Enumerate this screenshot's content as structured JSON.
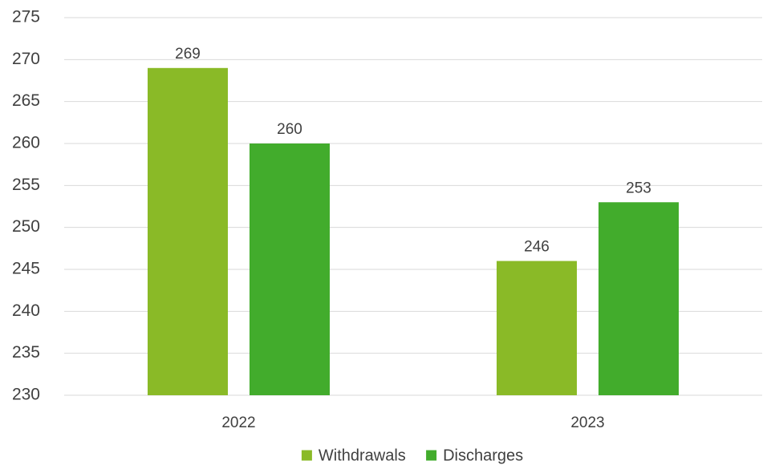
{
  "chart_data": {
    "type": "bar",
    "categories": [
      "2022",
      "2023"
    ],
    "series": [
      {
        "name": "Withdrawals",
        "values": [
          269,
          246
        ],
        "color": "#8aba27"
      },
      {
        "name": "Discharges",
        "values": [
          260,
          253
        ],
        "color": "#42ac2c"
      }
    ],
    "title": "",
    "xlabel": "",
    "ylabel": "",
    "ylim": [
      230,
      275
    ],
    "yticks": [
      230,
      235,
      240,
      245,
      250,
      255,
      260,
      265,
      270,
      275
    ],
    "grid": true,
    "legend": "bottom",
    "data_labels": true
  }
}
